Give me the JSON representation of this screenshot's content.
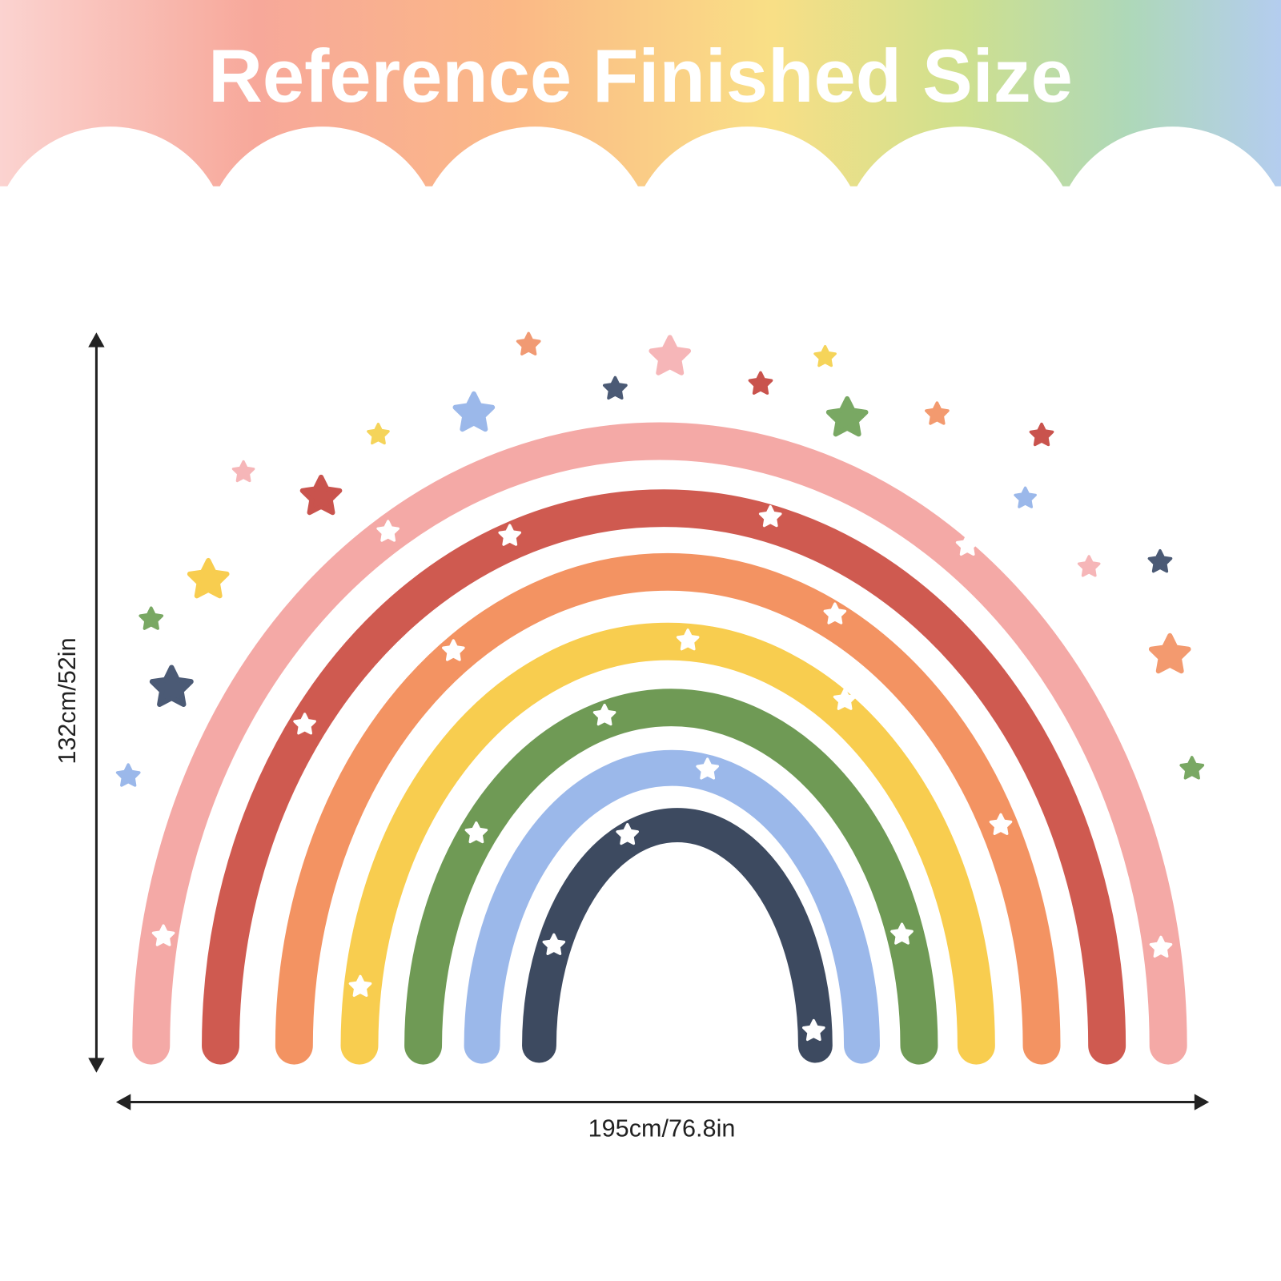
{
  "header": {
    "title": "Reference Finished Size"
  },
  "dimensions": {
    "height": "132cm/52in",
    "width": "195cm/76.8in"
  }
}
